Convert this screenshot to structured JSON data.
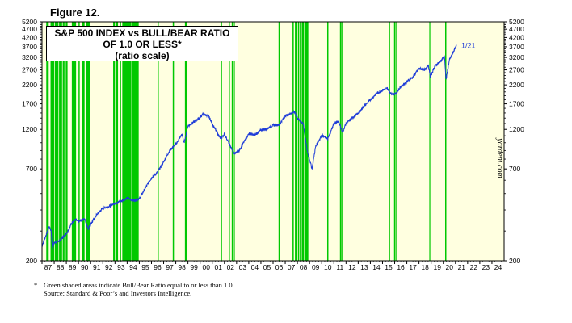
{
  "figure_label": "Figure 12.",
  "chart_data": {
    "type": "line",
    "title_lines": [
      "S&P 500 INDEX vs BULL/BEAR RATIO",
      "OF 1.0 OR LESS*",
      "(ratio scale)"
    ],
    "y_scale": "log",
    "ylim": [
      200,
      5200
    ],
    "y_ticks": [
      200,
      700,
      1200,
      1700,
      2200,
      2700,
      3200,
      3700,
      4200,
      4700,
      5200
    ],
    "y_tick_labels": [
      "200",
      "700",
      "1200",
      "1700",
      "2200",
      "2700",
      "3200",
      "3700",
      "4200",
      "4700",
      "5200"
    ],
    "xlim": [
      1987,
      2025
    ],
    "x_tick_labels": [
      "87",
      "88",
      "89",
      "90",
      "91",
      "92",
      "93",
      "94",
      "95",
      "96",
      "97",
      "98",
      "99",
      "00",
      "01",
      "02",
      "03",
      "04",
      "05",
      "06",
      "07",
      "08",
      "09",
      "10",
      "11",
      "12",
      "13",
      "14",
      "15",
      "16",
      "17",
      "18",
      "19",
      "20",
      "21",
      "22",
      "23",
      "24"
    ],
    "grid": false,
    "background_color": "#ffffe0",
    "shade_color": "#00c800",
    "line_color": "#1e3cd8",
    "end_annotation": "1/21",
    "watermark": "yardeni.com",
    "series": [
      {
        "x": [
          1987.0,
          1987.3,
          1987.6,
          1987.75,
          1987.85,
          1988.0,
          1988.5,
          1989.0,
          1989.5,
          1989.75,
          1990.0,
          1990.5,
          1990.8,
          1991.0,
          1991.5,
          1992.0,
          1992.5,
          1993.0,
          1993.5,
          1994.0,
          1994.5,
          1995.0,
          1995.5,
          1996.0,
          1996.5,
          1997.0,
          1997.5,
          1997.8,
          1998.0,
          1998.5,
          1998.7,
          1999.0,
          1999.5,
          2000.0,
          2000.2,
          2000.7,
          2001.0,
          2001.3,
          2001.7,
          2002.0,
          2002.5,
          2002.8,
          2003.2,
          2003.5,
          2004.0,
          2004.5,
          2005.0,
          2005.5,
          2006.0,
          2006.5,
          2007.0,
          2007.5,
          2007.8,
          2008.0,
          2008.5,
          2008.8,
          2009.0,
          2009.2,
          2009.5,
          2010.0,
          2010.5,
          2011.0,
          2011.4,
          2011.7,
          2012.0,
          2012.5,
          2013.0,
          2013.5,
          2014.0,
          2014.5,
          2015.0,
          2015.4,
          2015.7,
          2016.1,
          2016.5,
          2017.0,
          2017.5,
          2018.0,
          2018.5,
          2018.75,
          2018.95,
          2019.3,
          2019.7,
          2020.1,
          2020.22,
          2020.5,
          2020.8,
          2021.08
        ],
        "y": [
          245,
          280,
          320,
          300,
          240,
          255,
          265,
          290,
          340,
          350,
          340,
          355,
          310,
          330,
          375,
          410,
          420,
          440,
          450,
          470,
          455,
          465,
          540,
          620,
          670,
          770,
          900,
          950,
          980,
          1120,
          1000,
          1260,
          1330,
          1410,
          1480,
          1440,
          1300,
          1180,
          1050,
          1130,
          950,
          860,
          900,
          980,
          1130,
          1110,
          1190,
          1210,
          1270,
          1280,
          1440,
          1500,
          1520,
          1400,
          1280,
          900,
          800,
          700,
          950,
          1110,
          1050,
          1300,
          1340,
          1150,
          1300,
          1400,
          1500,
          1650,
          1800,
          1950,
          2050,
          2100,
          1950,
          1950,
          2150,
          2300,
          2450,
          2750,
          2700,
          2900,
          2450,
          2850,
          3000,
          3250,
          2350,
          3100,
          3400,
          3800
        ]
      }
    ],
    "shaded_periods": [
      [
        1987.35,
        1987.55
      ],
      [
        1987.7,
        1988.0
      ],
      [
        1988.05,
        1988.35
      ],
      [
        1988.4,
        1988.65
      ],
      [
        1988.7,
        1988.85
      ],
      [
        1988.95,
        1989.1
      ],
      [
        1989.45,
        1989.8
      ],
      [
        1990.0,
        1990.1
      ],
      [
        1990.3,
        1990.5
      ],
      [
        1990.6,
        1990.95
      ],
      [
        1992.85,
        1993.0
      ],
      [
        1993.05,
        1993.25
      ],
      [
        1993.4,
        1993.5
      ],
      [
        1993.6,
        1994.35
      ],
      [
        1994.4,
        1994.95
      ],
      [
        1996.5,
        1996.6
      ],
      [
        1997.75,
        1997.85
      ],
      [
        1998.75,
        1998.95
      ],
      [
        2001.7,
        2001.8
      ],
      [
        2002.35,
        2002.45
      ],
      [
        2002.6,
        2002.7
      ],
      [
        2002.78,
        2002.85
      ],
      [
        2006.45,
        2006.55
      ],
      [
        2007.6,
        2007.7
      ],
      [
        2007.8,
        2008.0
      ],
      [
        2008.05,
        2008.15
      ],
      [
        2008.2,
        2008.35
      ],
      [
        2008.38,
        2008.55
      ],
      [
        2008.6,
        2008.9
      ],
      [
        2010.45,
        2010.55
      ],
      [
        2011.5,
        2011.6
      ],
      [
        2011.62,
        2011.7
      ],
      [
        2015.55,
        2015.62
      ],
      [
        2015.95,
        2016.05
      ],
      [
        2016.08,
        2016.14
      ],
      [
        2018.85,
        2018.93
      ],
      [
        2020.15,
        2020.25
      ]
    ],
    "footnote": {
      "marker": "*",
      "line1": "Green shaded areas indicate Bull/Bear Ratio equal to or less than 1.0.",
      "line2": "Source: Standard & Poor’s and Investors Intelligence."
    }
  }
}
